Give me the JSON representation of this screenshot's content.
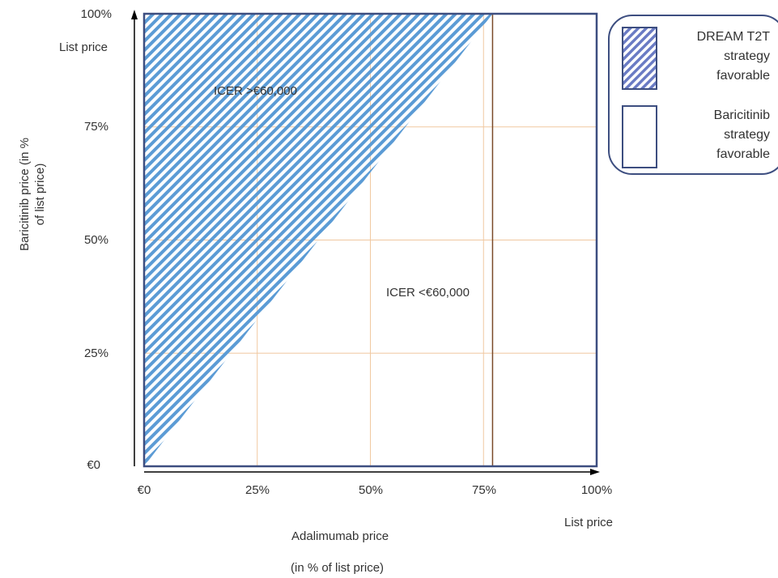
{
  "chart_data": {
    "type": "area",
    "x_axis": {
      "label_line1": "Adalimumab price",
      "label_line2": "(in % of list price)",
      "range": [
        0,
        100
      ],
      "ticks": [
        0,
        25,
        50,
        75,
        100
      ],
      "tick_labels": [
        "€0",
        "25%",
        "50%",
        "75%",
        "100%"
      ],
      "end_note": "List price"
    },
    "y_axis": {
      "label_line1": "Baricitinib price (in %",
      "label_line2": "of list price)",
      "range": [
        0,
        100
      ],
      "ticks": [
        0,
        25,
        50,
        75,
        100
      ],
      "tick_labels": [
        "€0",
        "25%",
        "50%",
        "75%",
        "100%"
      ],
      "end_note": "List price"
    },
    "threshold_line": {
      "x": [
        0,
        77
      ],
      "y": [
        0,
        100
      ]
    },
    "vertical_marker_x": 77,
    "regions": [
      {
        "name": "DREAM T2T strategy favorable",
        "annotation": "ICER >€60,000",
        "pattern": "diagonal-hatch"
      },
      {
        "name": "Baricitinib strategy favorable",
        "annotation": "ICER <€60,000",
        "pattern": "blank"
      }
    ],
    "grid": true,
    "legend_position": "top-right"
  },
  "legend": {
    "items": [
      {
        "label": "DREAM T2T\nstrategy\nfavorable"
      },
      {
        "label": "Baricitinib\nstrategy\nfavorable"
      }
    ]
  },
  "colors": {
    "hatch": "#5b9bd5",
    "frame": "#3d4e80",
    "grid": "#f0c8a0",
    "marker": "#7a4a2a",
    "axis": "#000000",
    "legend_hatch": "#6a7bc4"
  }
}
